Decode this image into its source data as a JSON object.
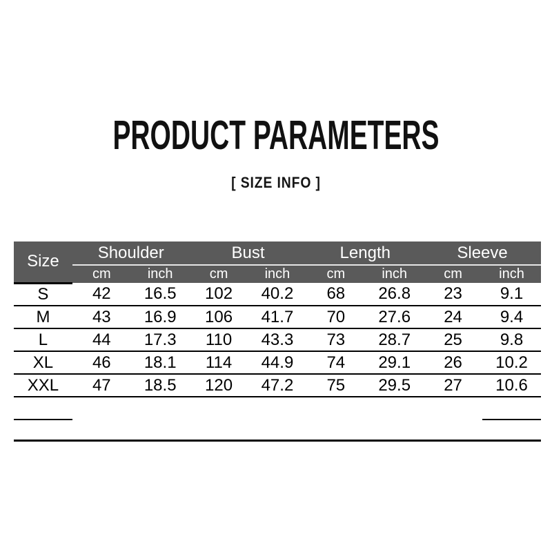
{
  "page": {
    "title": "PRODUCT PARAMETERS",
    "subtitle": "[ SIZE INFO ]"
  },
  "colors": {
    "header_background": "#5a5a5a",
    "header_text": "#ffffff",
    "header_divider_line": "#e6e6e6",
    "table_line": "#000000",
    "page_background": "#ffffff"
  },
  "table": {
    "size_column_header": "Size",
    "group_headers": [
      "Shoulder",
      "Bust",
      "Length",
      "Sleeve"
    ],
    "unit_headers": [
      "cm",
      "inch",
      "cm",
      "inch",
      "cm",
      "inch",
      "cm",
      "inch"
    ],
    "rows": [
      {
        "size": "S",
        "values": [
          "42",
          "16.5",
          "102",
          "40.2",
          "68",
          "26.8",
          "23",
          "9.1"
        ]
      },
      {
        "size": "M",
        "values": [
          "43",
          "16.9",
          "106",
          "41.7",
          "70",
          "27.6",
          "24",
          "9.4"
        ]
      },
      {
        "size": "L",
        "values": [
          "44",
          "17.3",
          "110",
          "43.3",
          "73",
          "28.7",
          "25",
          "9.8"
        ]
      },
      {
        "size": "XL",
        "values": [
          "46",
          "18.1",
          "114",
          "44.9",
          "74",
          "29.1",
          "26",
          "10.2"
        ]
      },
      {
        "size": "XXL",
        "values": [
          "47",
          "18.5",
          "120",
          "47.2",
          "75",
          "29.5",
          "27",
          "10.6"
        ]
      }
    ]
  }
}
